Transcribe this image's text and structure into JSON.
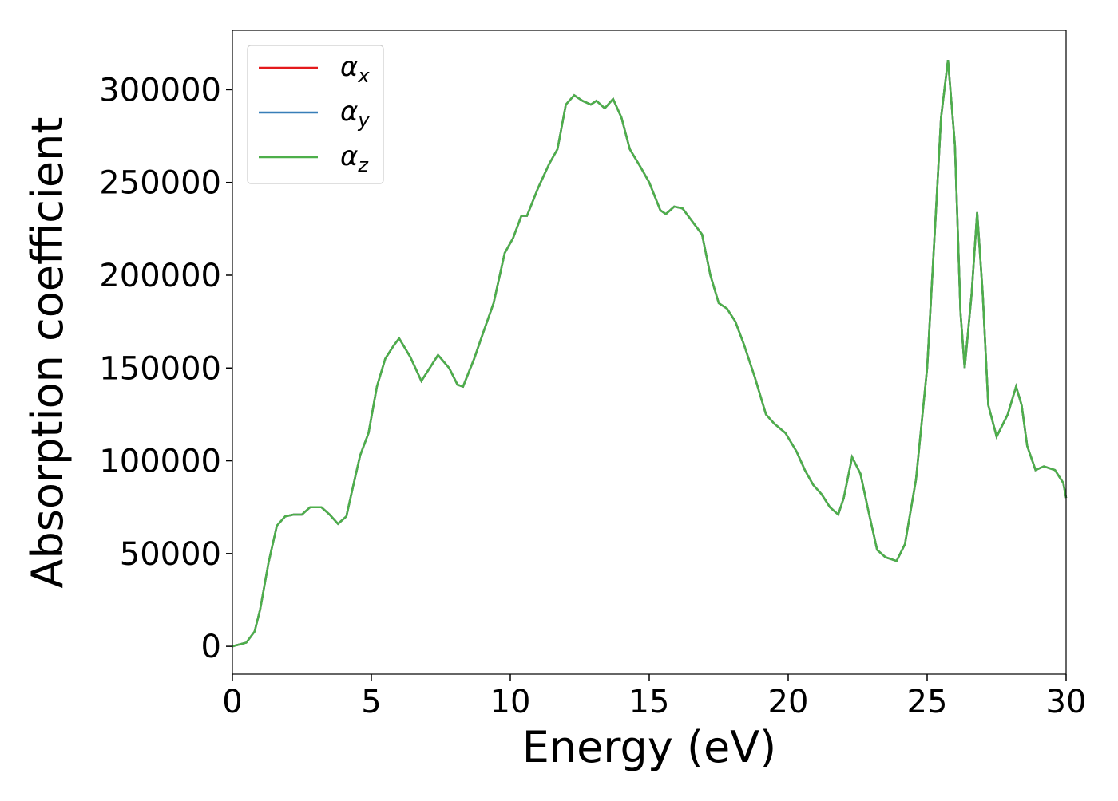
{
  "chart_data": {
    "type": "line",
    "xlabel": "Energy (eV)",
    "ylabel": "Absorption coefficient",
    "x": [
      0,
      0.5,
      0.8,
      1.0,
      1.3,
      1.6,
      1.9,
      2.2,
      2.5,
      2.8,
      3.2,
      3.5,
      3.8,
      4.1,
      4.4,
      4.6,
      4.9,
      5.2,
      5.5,
      5.8,
      6.0,
      6.4,
      6.8,
      7.1,
      7.4,
      7.8,
      8.1,
      8.3,
      8.7,
      9.0,
      9.4,
      9.8,
      10.1,
      10.4,
      10.6,
      11.0,
      11.4,
      11.7,
      12.0,
      12.3,
      12.6,
      12.9,
      13.1,
      13.4,
      13.7,
      14.0,
      14.3,
      14.7,
      15.0,
      15.4,
      15.6,
      15.9,
      16.2,
      16.5,
      16.9,
      17.2,
      17.5,
      17.8,
      18.1,
      18.4,
      18.8,
      19.2,
      19.5,
      19.9,
      20.3,
      20.6,
      20.9,
      21.2,
      21.5,
      21.8,
      22.0,
      22.3,
      22.6,
      22.9,
      23.2,
      23.5,
      23.9,
      24.2,
      24.6,
      25.0,
      25.3,
      25.5,
      25.75,
      26.0,
      26.2,
      26.35,
      26.6,
      26.8,
      27.0,
      27.2,
      27.5,
      27.9,
      28.2,
      28.4,
      28.6,
      28.9,
      29.2,
      29.6,
      29.9,
      30.0
    ],
    "series": [
      {
        "name": "αx",
        "color": "#e41a1c",
        "values": [
          0,
          2000,
          8000,
          20000,
          45000,
          65000,
          70000,
          71000,
          71000,
          75000,
          75000,
          71000,
          66000,
          70000,
          90000,
          103000,
          115000,
          140000,
          155000,
          162000,
          166000,
          156000,
          143000,
          150000,
          157000,
          150000,
          141000,
          140000,
          155000,
          168000,
          185000,
          212000,
          220000,
          232000,
          232000,
          247000,
          260000,
          268000,
          292000,
          297000,
          294000,
          292000,
          294000,
          290000,
          295000,
          285000,
          268000,
          258000,
          250000,
          235000,
          233000,
          237000,
          236000,
          230000,
          222000,
          200000,
          185000,
          182000,
          175000,
          163000,
          145000,
          125000,
          120000,
          115000,
          105000,
          95000,
          87000,
          82000,
          75000,
          71000,
          80000,
          102000,
          93000,
          72000,
          52000,
          48000,
          46000,
          55000,
          90000,
          150000,
          230000,
          285000,
          316000,
          270000,
          180000,
          150000,
          190000,
          234000,
          190000,
          130000,
          113000,
          125000,
          140000,
          130000,
          108000,
          95000,
          97000,
          95000,
          88000,
          80000
        ]
      },
      {
        "name": "αy",
        "color": "#377eb8",
        "values": [
          0,
          2000,
          8000,
          20000,
          45000,
          65000,
          70000,
          71000,
          71000,
          75000,
          75000,
          71000,
          66000,
          70000,
          90000,
          103000,
          115000,
          140000,
          155000,
          162000,
          166000,
          156000,
          143000,
          150000,
          157000,
          150000,
          141000,
          140000,
          155000,
          168000,
          185000,
          212000,
          220000,
          232000,
          232000,
          247000,
          260000,
          268000,
          292000,
          297000,
          294000,
          292000,
          294000,
          290000,
          295000,
          285000,
          268000,
          258000,
          250000,
          235000,
          233000,
          237000,
          236000,
          230000,
          222000,
          200000,
          185000,
          182000,
          175000,
          163000,
          145000,
          125000,
          120000,
          115000,
          105000,
          95000,
          87000,
          82000,
          75000,
          71000,
          80000,
          102000,
          93000,
          72000,
          52000,
          48000,
          46000,
          55000,
          90000,
          150000,
          230000,
          285000,
          316000,
          270000,
          180000,
          150000,
          190000,
          234000,
          190000,
          130000,
          113000,
          125000,
          140000,
          130000,
          108000,
          95000,
          97000,
          95000,
          88000,
          80000
        ]
      },
      {
        "name": "αz",
        "color": "#4daf4a",
        "values": [
          0,
          2000,
          8000,
          20000,
          45000,
          65000,
          70000,
          71000,
          71000,
          75000,
          75000,
          71000,
          66000,
          70000,
          90000,
          103000,
          115000,
          140000,
          155000,
          162000,
          166000,
          156000,
          143000,
          150000,
          157000,
          150000,
          141000,
          140000,
          155000,
          168000,
          185000,
          212000,
          220000,
          232000,
          232000,
          247000,
          260000,
          268000,
          292000,
          297000,
          294000,
          292000,
          294000,
          290000,
          295000,
          285000,
          268000,
          258000,
          250000,
          235000,
          233000,
          237000,
          236000,
          230000,
          222000,
          200000,
          185000,
          182000,
          175000,
          163000,
          145000,
          125000,
          120000,
          115000,
          105000,
          95000,
          87000,
          82000,
          75000,
          71000,
          80000,
          102000,
          93000,
          72000,
          52000,
          48000,
          46000,
          55000,
          90000,
          150000,
          230000,
          285000,
          316000,
          270000,
          180000,
          150000,
          190000,
          234000,
          190000,
          130000,
          113000,
          125000,
          140000,
          130000,
          108000,
          95000,
          97000,
          95000,
          88000,
          80000
        ]
      }
    ],
    "xlim": [
      0,
      30
    ],
    "xticks": [
      0,
      5,
      10,
      15,
      20,
      25,
      30
    ],
    "ylim": [
      -15000,
      332000
    ],
    "yticks": [
      0,
      50000,
      100000,
      150000,
      200000,
      250000,
      300000
    ],
    "legend": "upper left",
    "grid": false
  }
}
